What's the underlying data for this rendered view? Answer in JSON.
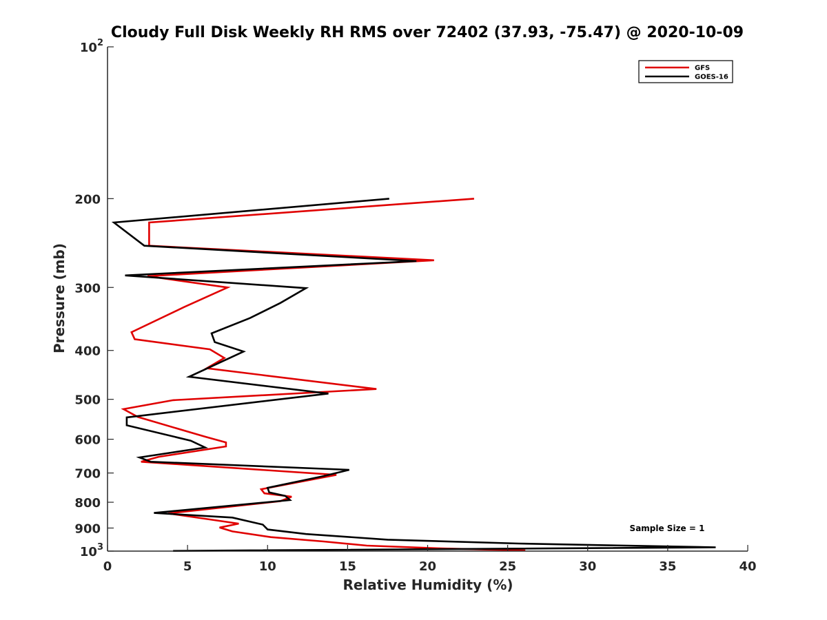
{
  "chart_data": {
    "type": "line",
    "title": "Cloudy Full Disk Weekly RH RMS over 72402 (37.93, -75.47) @ 2020-10-09",
    "xlabel": "Relative Humidity (%)",
    "ylabel": "Pressure (mb)",
    "xlim": [
      0,
      40
    ],
    "ylim": [
      100,
      1000
    ],
    "y_scale": "log",
    "y_reversed": true,
    "x_ticks": [
      0,
      5,
      10,
      15,
      20,
      25,
      30,
      35,
      40
    ],
    "x_tick_labels": [
      "0",
      "5",
      "10",
      "15",
      "20",
      "25",
      "30",
      "35",
      "40"
    ],
    "y_ticks": [
      100,
      200,
      300,
      400,
      500,
      600,
      700,
      800,
      900,
      1000
    ],
    "y_tick_labels": [
      {
        "base": "10",
        "exp": "2"
      },
      {
        "base": "200",
        "exp": ""
      },
      {
        "base": "300",
        "exp": ""
      },
      {
        "base": "400",
        "exp": ""
      },
      {
        "base": "500",
        "exp": ""
      },
      {
        "base": "600",
        "exp": ""
      },
      {
        "base": "700",
        "exp": ""
      },
      {
        "base": "800",
        "exp": ""
      },
      {
        "base": "900",
        "exp": ""
      },
      {
        "base": "10",
        "exp": "3"
      }
    ],
    "grid": false,
    "legend_position": "top-right",
    "annotation": "Sample Size = 1",
    "series": [
      {
        "name": "GFS",
        "color": "#e00000",
        "points": [
          {
            "x": 22.9,
            "y": 200
          },
          {
            "x": 2.6,
            "y": 223
          },
          {
            "x": 2.6,
            "y": 248
          },
          {
            "x": 20.4,
            "y": 265
          },
          {
            "x": 2.5,
            "y": 285
          },
          {
            "x": 7.5,
            "y": 300
          },
          {
            "x": 4.8,
            "y": 328
          },
          {
            "x": 1.5,
            "y": 368
          },
          {
            "x": 1.7,
            "y": 380
          },
          {
            "x": 6.4,
            "y": 398
          },
          {
            "x": 7.3,
            "y": 414
          },
          {
            "x": 6.2,
            "y": 434
          },
          {
            "x": 16.8,
            "y": 477
          },
          {
            "x": 4.1,
            "y": 502
          },
          {
            "x": 1.0,
            "y": 523
          },
          {
            "x": 1.9,
            "y": 542
          },
          {
            "x": 6.0,
            "y": 592
          },
          {
            "x": 7.4,
            "y": 609
          },
          {
            "x": 7.4,
            "y": 620
          },
          {
            "x": 3.2,
            "y": 650
          },
          {
            "x": 2.1,
            "y": 665
          },
          {
            "x": 14.3,
            "y": 706
          },
          {
            "x": 9.6,
            "y": 754
          },
          {
            "x": 9.8,
            "y": 768
          },
          {
            "x": 11.5,
            "y": 780
          },
          {
            "x": 10.8,
            "y": 796
          },
          {
            "x": 3.8,
            "y": 842
          },
          {
            "x": 8.2,
            "y": 882
          },
          {
            "x": 7.0,
            "y": 898
          },
          {
            "x": 7.8,
            "y": 914
          },
          {
            "x": 10.2,
            "y": 938
          },
          {
            "x": 13.5,
            "y": 957
          },
          {
            "x": 16.2,
            "y": 975
          },
          {
            "x": 21.0,
            "y": 988
          },
          {
            "x": 26.1,
            "y": 997
          }
        ]
      },
      {
        "name": "GOES-16",
        "color": "#000000",
        "points": [
          {
            "x": 17.6,
            "y": 200
          },
          {
            "x": 0.4,
            "y": 223
          },
          {
            "x": 2.3,
            "y": 248
          },
          {
            "x": 19.3,
            "y": 266
          },
          {
            "x": 1.1,
            "y": 284
          },
          {
            "x": 12.4,
            "y": 301
          },
          {
            "x": 10.8,
            "y": 322
          },
          {
            "x": 8.9,
            "y": 345
          },
          {
            "x": 6.5,
            "y": 370
          },
          {
            "x": 6.7,
            "y": 385
          },
          {
            "x": 8.5,
            "y": 402
          },
          {
            "x": 5.1,
            "y": 451
          },
          {
            "x": 13.8,
            "y": 487
          },
          {
            "x": 1.2,
            "y": 543
          },
          {
            "x": 1.2,
            "y": 563
          },
          {
            "x": 5.2,
            "y": 604
          },
          {
            "x": 6.1,
            "y": 623
          },
          {
            "x": 2.0,
            "y": 652
          },
          {
            "x": 2.7,
            "y": 665
          },
          {
            "x": 15.1,
            "y": 690
          },
          {
            "x": 13.5,
            "y": 710
          },
          {
            "x": 10.0,
            "y": 749
          },
          {
            "x": 10.1,
            "y": 765
          },
          {
            "x": 11.1,
            "y": 777
          },
          {
            "x": 11.4,
            "y": 792
          },
          {
            "x": 2.9,
            "y": 840
          },
          {
            "x": 7.8,
            "y": 858
          },
          {
            "x": 9.7,
            "y": 886
          },
          {
            "x": 10.0,
            "y": 906
          },
          {
            "x": 12.4,
            "y": 925
          },
          {
            "x": 17.5,
            "y": 949
          },
          {
            "x": 25.7,
            "y": 966
          },
          {
            "x": 38.0,
            "y": 983
          },
          {
            "x": 4.1,
            "y": 999
          }
        ]
      }
    ]
  }
}
